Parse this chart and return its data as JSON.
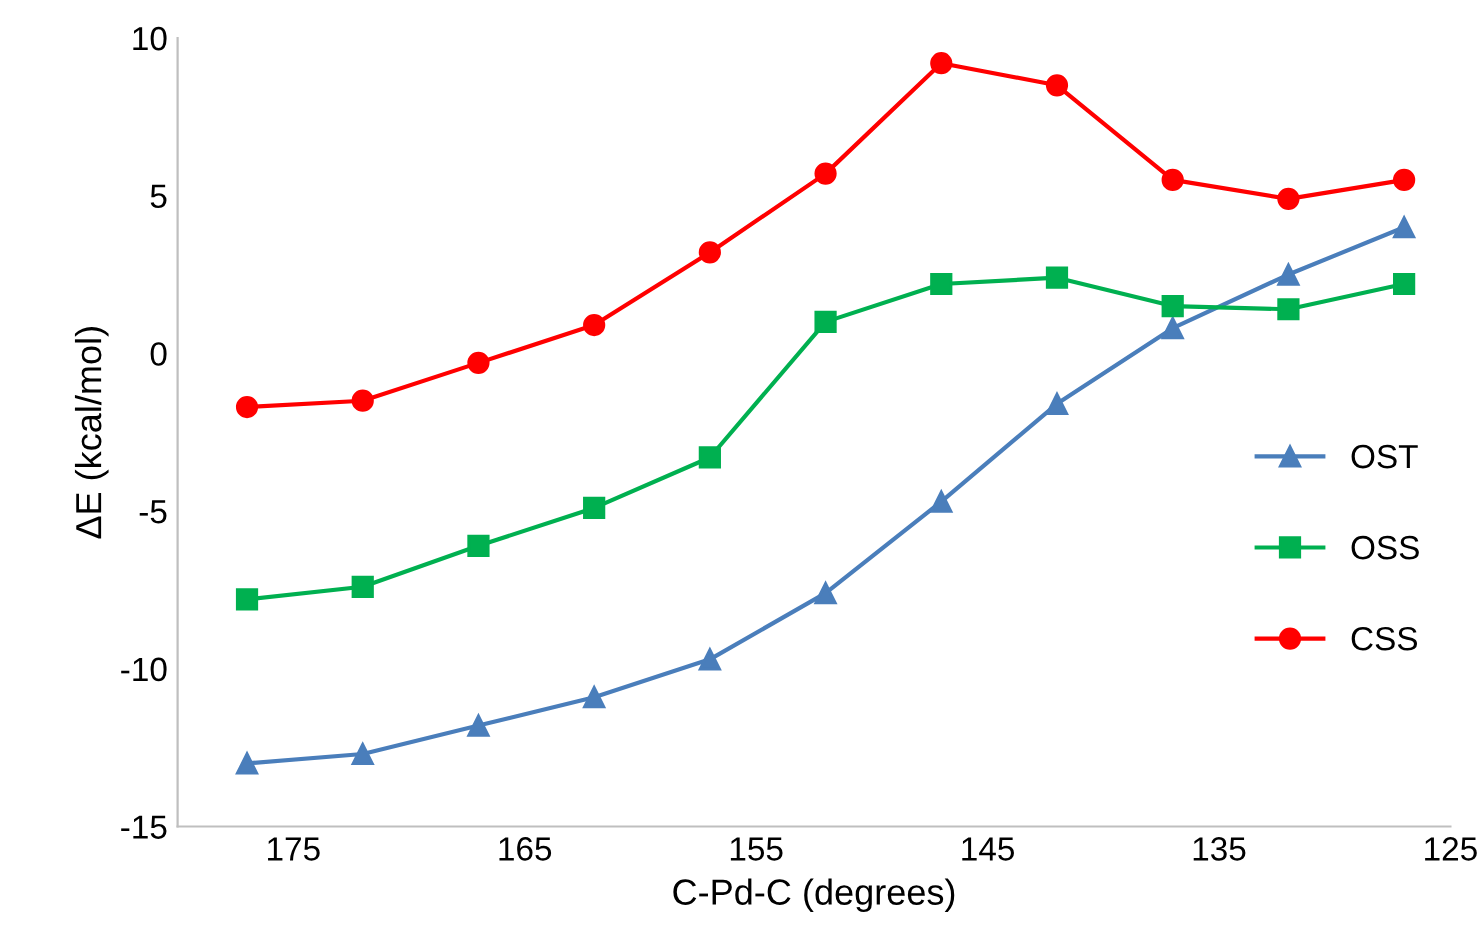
{
  "chart_data": {
    "type": "line",
    "xlabel": "C-Pd-C (degrees)",
    "ylabel": "ΔE (kcal/mol)",
    "x": [
      177,
      172,
      167,
      162,
      157,
      152,
      147,
      142,
      137,
      132,
      127
    ],
    "xlim": [
      180,
      125
    ],
    "xticks": [
      175,
      165,
      155,
      145,
      135,
      125
    ],
    "ylim": [
      -15,
      10
    ],
    "yticks": [
      -15,
      -10,
      -5,
      0,
      5,
      10
    ],
    "grid": false,
    "legend": "right",
    "line_style": "solid",
    "series": [
      {
        "name": "OST",
        "color": "#4a7ebb",
        "marker": "triangle",
        "values": [
          -13.0,
          -12.7,
          -11.8,
          -10.9,
          -9.7,
          -7.6,
          -4.7,
          -1.6,
          0.8,
          2.5,
          4.0
        ]
      },
      {
        "name": "OSS",
        "color": "#00b050",
        "marker": "square",
        "values": [
          -7.8,
          -7.4,
          -6.1,
          -4.9,
          -3.3,
          1.0,
          2.2,
          2.4,
          1.5,
          1.4,
          2.2
        ]
      },
      {
        "name": "CSS",
        "color": "#ff0000",
        "marker": "circle",
        "values": [
          -1.7,
          -1.5,
          -0.3,
          0.9,
          3.2,
          5.7,
          9.2,
          8.5,
          5.5,
          4.9,
          5.5
        ]
      }
    ]
  }
}
